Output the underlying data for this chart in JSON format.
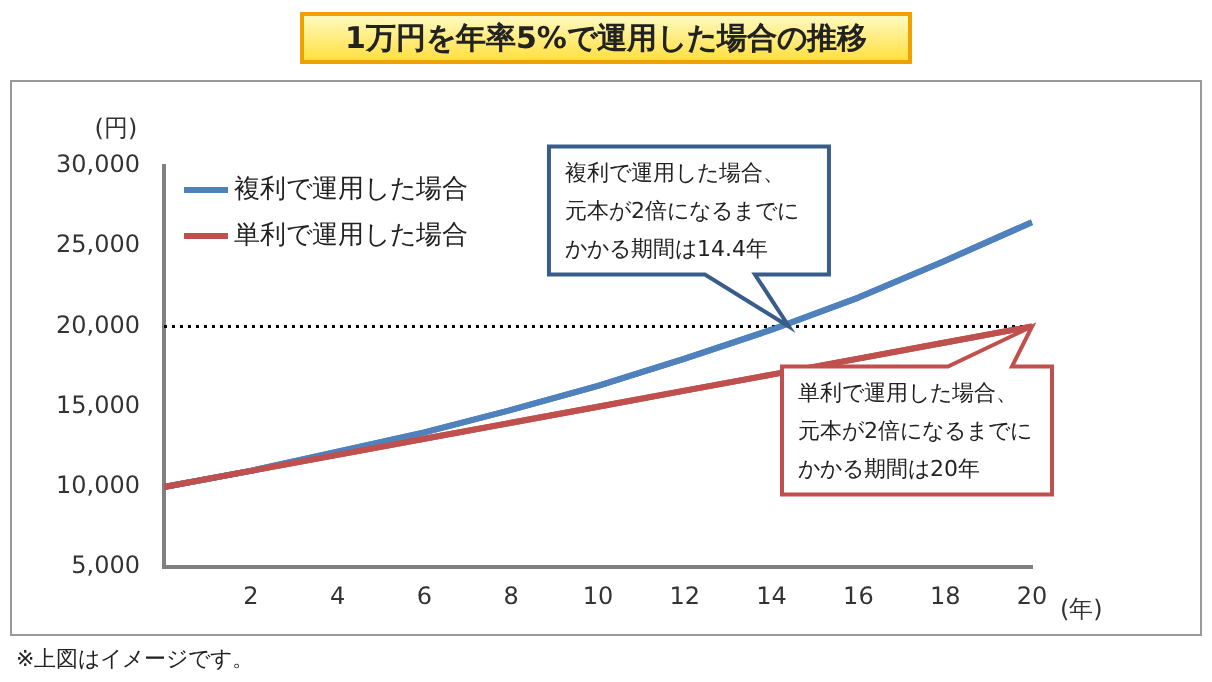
{
  "chart_data": {
    "type": "line",
    "title": "1万円を年率5%で運用した場合の推移",
    "xlabel": "(年)",
    "ylabel": "(円)",
    "x": [
      0,
      2,
      4,
      6,
      8,
      10,
      12,
      14,
      16,
      18,
      20
    ],
    "series": [
      {
        "name": "複利で運用した場合",
        "color": "#4f81bd",
        "values": [
          10000,
          11000,
          12200,
          13400,
          14800,
          16300,
          18000,
          19800,
          21800,
          24100,
          26500
        ]
      },
      {
        "name": "単利で運用した場合",
        "color": "#c0504d",
        "values": [
          10000,
          11000,
          12000,
          13000,
          14000,
          15000,
          16000,
          17000,
          18000,
          19000,
          20000
        ]
      }
    ],
    "xlim": [
      0,
      20
    ],
    "xticks": [
      2,
      4,
      6,
      8,
      10,
      12,
      14,
      16,
      18,
      20
    ],
    "ylim": [
      5000,
      30000
    ],
    "yticks": [
      {
        "value": 5000,
        "label": "5,000"
      },
      {
        "value": 10000,
        "label": "10,000"
      },
      {
        "value": 15000,
        "label": "15,000"
      },
      {
        "value": 20000,
        "label": "20,000"
      },
      {
        "value": 25000,
        "label": "25,000"
      },
      {
        "value": 30000,
        "label": "30,000"
      }
    ],
    "ref_lines": [
      {
        "axis": "y",
        "value": 20000,
        "line_style": "dotted",
        "color": "#000000"
      }
    ],
    "grid": false,
    "legend": "top left",
    "marker": "none",
    "line_style": "solid",
    "annotations": [
      {
        "text": "複利で運用した場合、元本が2倍になるまでにかかる期間は14.4年",
        "x": 14.4,
        "y": 20000
      },
      {
        "text": "単利で運用した場合、元本が2倍になるまでにかかる期間は20年",
        "x": 20,
        "y": 20000
      },
      "※上図はイメージです。"
    ]
  }
}
